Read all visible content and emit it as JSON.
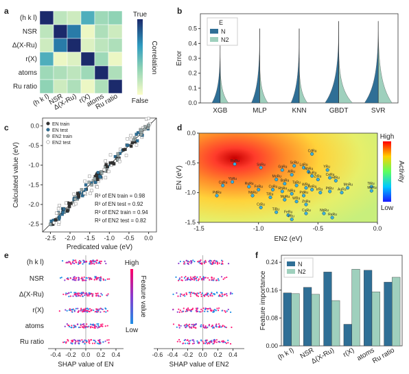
{
  "panels": [
    "a",
    "b",
    "c",
    "d",
    "e",
    "f"
  ],
  "chart_data": [
    {
      "id": "a",
      "type": "heatmap",
      "features": [
        "(h k l)",
        "NSR",
        "Δ(X-Ru)",
        "r(X)",
        "atoms",
        "Ru ratio"
      ],
      "matrix": [
        [
          1.0,
          0.2,
          0.15,
          0.55,
          0.3,
          0.35
        ],
        [
          0.2,
          1.0,
          0.75,
          0.05,
          0.25,
          0.15
        ],
        [
          0.15,
          0.75,
          1.0,
          0.1,
          0.2,
          0.25
        ],
        [
          0.55,
          0.05,
          0.1,
          1.0,
          0.3,
          0.05
        ],
        [
          0.3,
          0.25,
          0.2,
          0.3,
          1.0,
          0.25
        ],
        [
          0.35,
          0.15,
          0.25,
          0.05,
          0.25,
          1.0
        ]
      ],
      "colorbar_label": "Correlation",
      "colorbar_high": "True",
      "colorbar_low": "False",
      "colors": [
        "#fbfdc7",
        "#1b2a6b"
      ]
    },
    {
      "id": "b",
      "type": "violin",
      "categories": [
        "XGB",
        "MLP",
        "KNN",
        "GBDT",
        "SVR"
      ],
      "ylabel": "Error",
      "ylim": [
        0,
        0.6
      ],
      "yticks": [
        "0.0",
        "0.1",
        "0.2",
        "0.3",
        "0.4",
        "0.5"
      ],
      "legend_title": "E",
      "legend": [
        "N",
        "N2"
      ],
      "series": [
        {
          "name": "N",
          "color": "#2f6f96",
          "max": [
            0.4,
            0.5,
            0.5,
            0.55,
            0.55
          ]
        },
        {
          "name": "N2",
          "color": "#9fd0bd",
          "max": [
            0.3,
            0.32,
            0.3,
            0.4,
            0.55
          ]
        }
      ]
    },
    {
      "id": "c",
      "type": "scatter",
      "xlabel": "Predicated value (eV)",
      "ylabel": "Calculated value (eV)",
      "xlim": [
        -2.7,
        0.2
      ],
      "ylim": [
        -2.7,
        0.2
      ],
      "xticks": [
        "-2.5",
        "-2.0",
        "-1.5",
        "-1.0",
        "-0.5",
        "0.0"
      ],
      "yticks": [
        "-2.5",
        "-2.0",
        "-1.5",
        "-1.0",
        "-0.5",
        "0.0"
      ],
      "legend": [
        "EN train",
        "EN test",
        "EN2 train",
        "EN2 test"
      ],
      "annotations": [
        {
          "label": "R² of EN train",
          "value": "= 0.98"
        },
        {
          "label": "R² of EN test",
          "value": "= 0.92"
        },
        {
          "label": "R² of EN2 train",
          "value": "= 0.94"
        },
        {
          "label": "R² of EN2 test",
          "value": "= 0.82"
        }
      ]
    },
    {
      "id": "d",
      "type": "heatmap",
      "xlabel": "EN2 (eV)",
      "ylabel": "EN (eV)",
      "xlim": [
        -1.5,
        0
      ],
      "ylim": [
        -1.5,
        0
      ],
      "xticks": [
        "-1.5",
        "-1.0",
        "-0.5",
        "0.0"
      ],
      "yticks": [
        "-1.5",
        "-1.0",
        "-0.5",
        "0.0"
      ],
      "colorbar_label": "Activity",
      "colorbar_high": "High",
      "colorbar_low": "Low",
      "points": [
        {
          "x": -0.55,
          "y": -0.35,
          "t": "CdRu"
        },
        {
          "x": -0.98,
          "y": -0.58,
          "t": "SnRu"
        },
        {
          "x": -0.7,
          "y": -0.55,
          "t": "ScRu"
        },
        {
          "x": -0.62,
          "y": -0.58,
          "t": "LaRu"
        },
        {
          "x": -0.58,
          "y": -0.65,
          "t": "NbRu"
        },
        {
          "x": -0.42,
          "y": -0.62,
          "t": "YRu"
        },
        {
          "x": -0.8,
          "y": -0.62,
          "t": "GaRu"
        },
        {
          "x": -0.72,
          "y": -0.7,
          "t": "AlRu"
        },
        {
          "x": -0.55,
          "y": -0.72,
          "t": "RuRu"
        },
        {
          "x": -0.5,
          "y": -0.78,
          "t": "ZrRu"
        },
        {
          "x": -0.4,
          "y": -0.75,
          "t": "CeRu"
        },
        {
          "x": -0.35,
          "y": -0.8,
          "t": "HfRu"
        },
        {
          "x": -0.85,
          "y": -0.78,
          "t": "MoRu"
        },
        {
          "x": -0.78,
          "y": -0.85,
          "t": "BaRu"
        },
        {
          "x": -0.68,
          "y": -0.88,
          "t": "TaRu"
        },
        {
          "x": -0.6,
          "y": -0.92,
          "t": "WRu"
        },
        {
          "x": -0.55,
          "y": -0.95,
          "t": "ReRu"
        },
        {
          "x": -1.22,
          "y": -0.82,
          "t": "YbRu"
        },
        {
          "x": -1.3,
          "y": -0.88,
          "t": "CaRu"
        },
        {
          "x": -1.08,
          "y": -0.9,
          "t": "RuRu"
        },
        {
          "x": -1.0,
          "y": -0.95,
          "t": "FeRu"
        },
        {
          "x": -0.88,
          "y": -0.95,
          "t": "CoRu"
        },
        {
          "x": -0.8,
          "y": -0.98,
          "t": "RhRu"
        },
        {
          "x": -0.72,
          "y": -1.02,
          "t": "NiRu"
        },
        {
          "x": -0.62,
          "y": -1.05,
          "t": "PdRu"
        },
        {
          "x": -0.48,
          "y": -1.0,
          "t": "IrRu"
        },
        {
          "x": -0.4,
          "y": -0.98,
          "t": "PtRu"
        },
        {
          "x": -0.3,
          "y": -1.0,
          "t": "AuRu"
        },
        {
          "x": -0.25,
          "y": -0.92,
          "t": "MnRu"
        },
        {
          "x": -0.05,
          "y": -0.9,
          "t": "TiRu"
        },
        {
          "x": -0.05,
          "y": -0.97,
          "t": "MoRu"
        },
        {
          "x": -1.05,
          "y": -1.05,
          "t": "NbRu"
        },
        {
          "x": -0.9,
          "y": -1.08,
          "t": "TiRu"
        },
        {
          "x": -0.78,
          "y": -1.12,
          "t": "MgRu"
        },
        {
          "x": -0.68,
          "y": -1.15,
          "t": "WRu"
        },
        {
          "x": -0.6,
          "y": -1.2,
          "t": "ZnRu"
        },
        {
          "x": -1.35,
          "y": -1.05,
          "t": "PdRu"
        },
        {
          "x": -0.98,
          "y": -1.25,
          "t": "CrRu"
        },
        {
          "x": -0.85,
          "y": -1.33,
          "t": "TiRu"
        },
        {
          "x": -0.75,
          "y": -1.38,
          "t": "FeRu"
        },
        {
          "x": -0.6,
          "y": -1.35,
          "t": "CuRu"
        },
        {
          "x": -0.72,
          "y": -1.45,
          "t": "VRu"
        },
        {
          "x": -0.45,
          "y": -1.35,
          "t": "NbRu"
        },
        {
          "x": -0.38,
          "y": -1.42,
          "t": "ReRu"
        },
        {
          "x": -1.2,
          "y": -0.52,
          "t": "RuRu"
        }
      ]
    },
    {
      "id": "e1",
      "type": "scatter",
      "xlabel": "SHAP value of EN",
      "features": [
        "(h k l)",
        "NSR",
        "Δ(X-Ru)",
        "r(X)",
        "atoms",
        "Ru ratio"
      ],
      "xlim": [
        -0.5,
        0.5
      ],
      "xticks": [
        "-0.4",
        "-0.2",
        "0.0",
        "0.2",
        "0.4"
      ],
      "colorbar_label": "Feature value",
      "colorbar_high": "High",
      "colorbar_low": "Low"
    },
    {
      "id": "e2",
      "type": "scatter",
      "xlabel": "SHAP value of EN2",
      "features": [
        "(h k l)",
        "NSR",
        "Δ(X-Ru)",
        "r(X)",
        "atoms",
        "Ru ratio"
      ],
      "xlim": [
        -0.65,
        0.55
      ],
      "xticks": [
        "-0.6",
        "-0.4",
        "-0.2",
        "0.0",
        "0.2",
        "0.4"
      ]
    },
    {
      "id": "f",
      "type": "bar",
      "categories": [
        "(h k l)",
        "NSR",
        "Δ(X-Ru)",
        "r(X)",
        "atoms",
        "Ru ratio"
      ],
      "ylabel": "Feature importance",
      "ylim": [
        0,
        0.26
      ],
      "yticks": [
        "0.00",
        "0.08",
        "0.16",
        "0.24"
      ],
      "legend": [
        "N",
        "N2"
      ],
      "series": [
        {
          "name": "N",
          "color": "#2f6f96",
          "values": [
            0.152,
            0.168,
            0.212,
            0.062,
            0.217,
            0.183
          ]
        },
        {
          "name": "N2",
          "color": "#9fd0bd",
          "values": [
            0.15,
            0.148,
            0.13,
            0.22,
            0.155,
            0.197
          ]
        }
      ]
    }
  ]
}
